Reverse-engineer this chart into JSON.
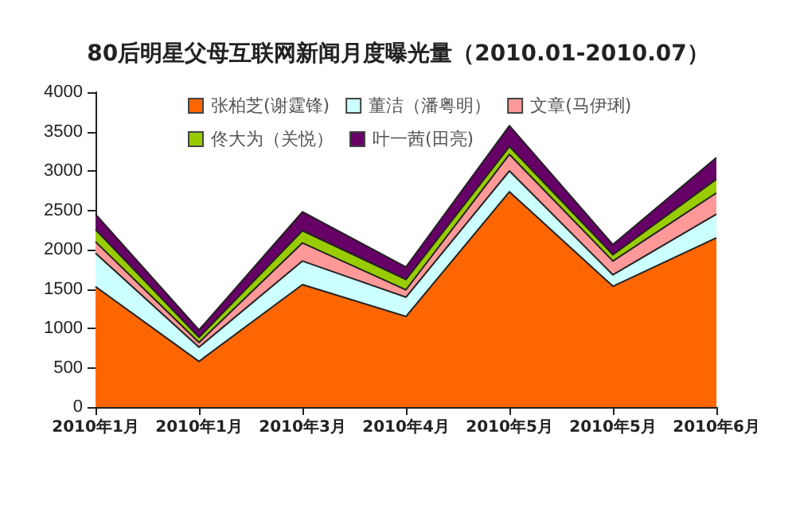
{
  "chart_data": {
    "type": "area",
    "stacked": true,
    "title": "80后明星父母互联网新闻月度曝光量（2010.01-2010.07）",
    "categories": [
      "2010年1月",
      "2010年1月",
      "2010年3月",
      "2010年4月",
      "2010年5月",
      "2010年5月",
      "2010年6月"
    ],
    "series": [
      {
        "name": "张柏芝(谢霆锋)",
        "color": "#ff6600",
        "values": [
          1530,
          580,
          1555,
          1150,
          2735,
          1535,
          2150
        ]
      },
      {
        "name": "董洁（潘粤明）",
        "color": "#ccffff",
        "values": [
          425,
          180,
          300,
          245,
          265,
          145,
          300
        ]
      },
      {
        "name": "文章(马伊琍)",
        "color": "#ff9999",
        "values": [
          145,
          60,
          230,
          95,
          210,
          175,
          270
        ]
      },
      {
        "name": "佟大为（关悦）",
        "color": "#99cc00",
        "values": [
          155,
          65,
          155,
          130,
          100,
          80,
          175
        ]
      },
      {
        "name": "叶一茜(田亮)",
        "color": "#660066",
        "values": [
          195,
          95,
          240,
          160,
          265,
          130,
          275
        ]
      }
    ],
    "ylim": [
      0,
      4000
    ],
    "yticks": [
      0,
      500,
      1000,
      1500,
      2000,
      2500,
      3000,
      3500,
      4000
    ],
    "grid": false,
    "legend": "top"
  }
}
